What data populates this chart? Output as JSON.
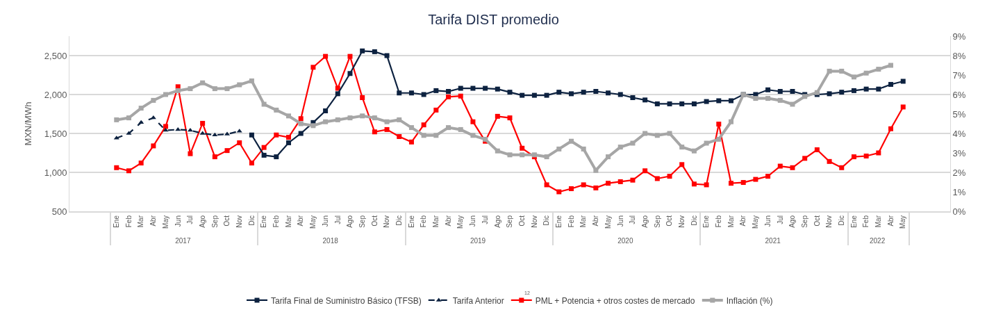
{
  "chart_data": {
    "type": "line",
    "title": "Tarifa DIST promedio",
    "ylabel": "MXN/MWh",
    "categories": [
      "Ene",
      "Feb",
      "Mar",
      "Abr",
      "May",
      "Jun",
      "Jul",
      "Ago",
      "Sep",
      "Oct",
      "Nov",
      "Dic",
      "Ene",
      "Feb",
      "Mar",
      "Abr",
      "May",
      "Jun",
      "Jul",
      "Ago",
      "Sep",
      "Oct",
      "Nov",
      "Dic",
      "Ene",
      "Feb",
      "Mar",
      "Abr",
      "May",
      "Jun",
      "Jul",
      "Ago",
      "Sep",
      "Oct",
      "Nov",
      "Dic",
      "Ene",
      "Feb",
      "Mar",
      "Abr",
      "May",
      "Jun",
      "Jul",
      "Ago",
      "Sep",
      "Oct",
      "Nov",
      "Dic",
      "Ene",
      "Feb",
      "Mar",
      "Abr",
      "May",
      "Jun",
      "Jul",
      "Ago",
      "Sep",
      "Oct",
      "Nov",
      "Dic",
      "Ene",
      "Feb",
      "Mar",
      "Abr",
      "May"
    ],
    "series": [
      {
        "name": "Tarifa Final de Suministro Básico (TFSB)",
        "color": "#0d2240",
        "marker": "square",
        "line_style": "solid",
        "values": [
          null,
          null,
          null,
          null,
          null,
          null,
          null,
          null,
          null,
          null,
          null,
          1480,
          1220,
          1200,
          1380,
          1500,
          1640,
          1790,
          2010,
          2270,
          2560,
          2550,
          2500,
          2020,
          2020,
          2000,
          2050,
          2040,
          2080,
          2080,
          2080,
          2070,
          2030,
          1990,
          1990,
          1990,
          2030,
          2010,
          2030,
          2040,
          2020,
          2000,
          1960,
          1930,
          1880,
          1880,
          1880,
          1880,
          1910,
          1920,
          1920,
          2000,
          2000,
          2060,
          2040,
          2040,
          2000,
          2000,
          2010,
          2030,
          2050,
          2070,
          2070,
          2130,
          2170
        ]
      },
      {
        "name": "Tarifa Anterior",
        "color": "#0d2240",
        "marker": "triangle",
        "line_style": "dashed",
        "values": [
          1440,
          1500,
          1640,
          1700,
          1540,
          1550,
          1540,
          1500,
          1480,
          1490,
          1530,
          null,
          null,
          null,
          null,
          null,
          null,
          null,
          null,
          null,
          null,
          null,
          null,
          null,
          null,
          null,
          null,
          null,
          null,
          null,
          null,
          null,
          null,
          null,
          null,
          null,
          null,
          null,
          null,
          null,
          null,
          null,
          null,
          null,
          null,
          null,
          null,
          null,
          null,
          null,
          null,
          null,
          null,
          null,
          null,
          null,
          null,
          null,
          null,
          null,
          null,
          null,
          null,
          null,
          null
        ]
      },
      {
        "name": "PML + Potencia + otros costes de mercado",
        "color": "#ff0000",
        "marker": "square",
        "line_style": "solid",
        "values": [
          1060,
          1020,
          1120,
          1340,
          1590,
          2100,
          1240,
          1630,
          1200,
          1280,
          1380,
          1120,
          1320,
          1480,
          1450,
          1690,
          2350,
          2490,
          2080,
          2490,
          1960,
          1520,
          1550,
          1460,
          1390,
          1610,
          1800,
          1970,
          1980,
          1650,
          1400,
          1720,
          1700,
          1310,
          1200,
          840,
          750,
          790,
          840,
          800,
          860,
          880,
          900,
          1020,
          920,
          950,
          1100,
          850,
          840,
          1620,
          860,
          870,
          910,
          950,
          1080,
          1060,
          1180,
          1290,
          1140,
          1060,
          1200,
          1210,
          1250,
          1560,
          1840
        ]
      },
      {
        "name": "Inflación (%)",
        "color": "#a6a6a6",
        "marker": "square",
        "line_style": "solid",
        "axis": "y2",
        "values": [
          4.7,
          4.8,
          5.3,
          5.7,
          6.0,
          6.2,
          6.3,
          6.6,
          6.3,
          6.3,
          6.5,
          6.7,
          5.5,
          5.2,
          4.9,
          4.5,
          4.4,
          4.6,
          4.7,
          4.8,
          4.9,
          4.8,
          4.6,
          4.7,
          4.3,
          3.9,
          3.9,
          4.3,
          4.2,
          3.9,
          3.7,
          3.1,
          2.9,
          2.9,
          2.9,
          2.8,
          3.2,
          3.6,
          3.2,
          2.1,
          2.8,
          3.3,
          3.5,
          4.0,
          3.9,
          4.0,
          3.3,
          3.1,
          3.5,
          3.7,
          4.6,
          6.0,
          5.8,
          5.8,
          5.7,
          5.5,
          5.9,
          6.1,
          7.2,
          7.2,
          6.9,
          7.1,
          7.3,
          7.5,
          null
        ]
      }
    ],
    "ylim": [
      500,
      2750
    ],
    "yticks": [
      {
        "value": 500,
        "label": "500"
      },
      {
        "value": 1000,
        "label": "1,000"
      },
      {
        "value": 1500,
        "label": "1,500"
      },
      {
        "value": 2000,
        "label": "2,000"
      },
      {
        "value": 2500,
        "label": "2,500"
      }
    ],
    "y2lim": [
      0,
      9
    ],
    "y2ticks": [
      {
        "value": 0,
        "label": "0%"
      },
      {
        "value": 1,
        "label": "1%"
      },
      {
        "value": 2,
        "label": "2%"
      },
      {
        "value": 3,
        "label": "3%"
      },
      {
        "value": 4,
        "label": "4%"
      },
      {
        "value": 5,
        "label": "5%"
      },
      {
        "value": 6,
        "label": "6%"
      },
      {
        "value": 7,
        "label": "7%"
      },
      {
        "value": 8,
        "label": "8%"
      },
      {
        "value": 9,
        "label": "9%"
      }
    ],
    "grid": "y",
    "legend": "bottom",
    "annotations": [
      "2017",
      "2018",
      "2019",
      "2020",
      "2021",
      "2022",
      "12"
    ]
  }
}
